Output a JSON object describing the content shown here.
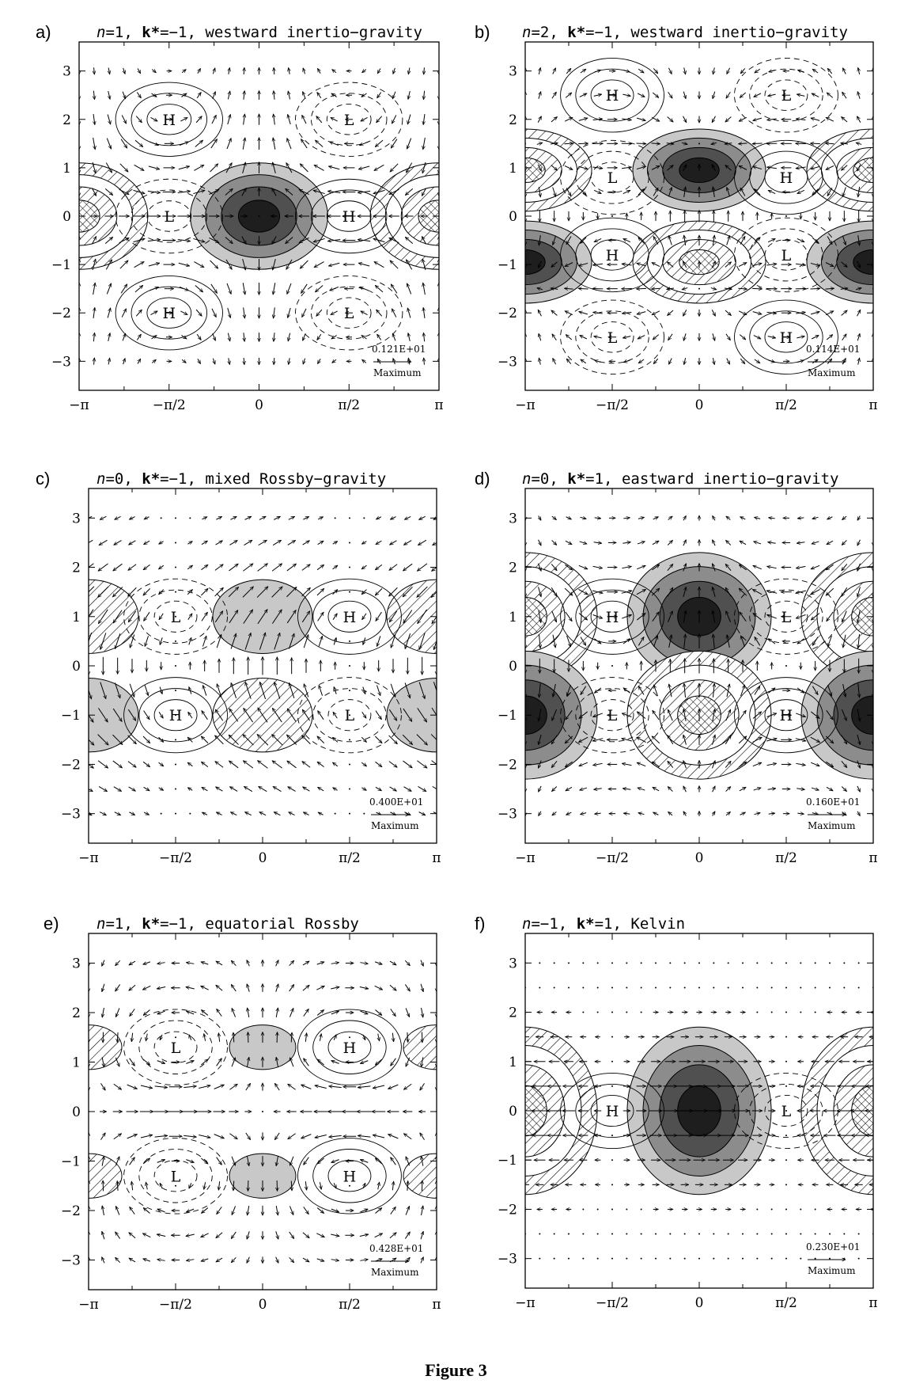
{
  "figure": {
    "caption": "Figure 3"
  },
  "axes": {
    "x_ticks": [
      "−π",
      "−π/2",
      "0",
      "π/2",
      "π"
    ],
    "y_ticks": [
      "3",
      "2",
      "1",
      "0",
      "−1",
      "−2",
      "−3"
    ],
    "max_label": "Maximum"
  },
  "colors": {
    "shade_light": "#c8c8c8",
    "shade_mid": "#8c8c8c",
    "shade_dark": "#505050",
    "shade_darkest": "#1e1e1e"
  },
  "panels": [
    {
      "letter": "a)",
      "n": "1",
      "k": "−1",
      "desc": "westward inertio−gravity",
      "max_value": "0.121E+01",
      "labels": [
        {
          "t": "H",
          "x": -1.57,
          "y": 2
        },
        {
          "t": "L",
          "x": 1.57,
          "y": 2
        },
        {
          "t": "L",
          "x": -1.57,
          "y": 0
        },
        {
          "t": "H",
          "x": 1.57,
          "y": 0
        },
        {
          "t": "H",
          "x": -1.57,
          "y": -2
        },
        {
          "t": "L",
          "x": 1.57,
          "y": -2
        }
      ]
    },
    {
      "letter": "b)",
      "n": "2",
      "k": "−1",
      "desc": "westward inertio−gravity",
      "max_value": "0.114E+01",
      "labels": [
        {
          "t": "H",
          "x": -1.57,
          "y": 2.5
        },
        {
          "t": "L",
          "x": 1.57,
          "y": 2.5
        },
        {
          "t": "L",
          "x": -1.57,
          "y": 0.8
        },
        {
          "t": "H",
          "x": 1.57,
          "y": 0.8
        },
        {
          "t": "H",
          "x": -1.57,
          "y": -0.8
        },
        {
          "t": "L",
          "x": 1.57,
          "y": -0.8
        },
        {
          "t": "L",
          "x": -1.57,
          "y": -2.5
        },
        {
          "t": "H",
          "x": 1.57,
          "y": -2.5
        }
      ]
    },
    {
      "letter": "c)",
      "n": "0",
      "k": "−1",
      "desc": "mixed Rossby−gravity",
      "max_value": "0.400E+01",
      "labels": [
        {
          "t": "L",
          "x": -1.57,
          "y": 1
        },
        {
          "t": "H",
          "x": 1.57,
          "y": 1
        },
        {
          "t": "H",
          "x": -1.57,
          "y": -1
        },
        {
          "t": "L",
          "x": 1.57,
          "y": -1
        }
      ]
    },
    {
      "letter": "d)",
      "n": "0",
      "k": "1",
      "desc": "eastward inertio−gravity",
      "max_value": "0.160E+01",
      "labels": [
        {
          "t": "H",
          "x": -1.57,
          "y": 1
        },
        {
          "t": "L",
          "x": 1.57,
          "y": 1
        },
        {
          "t": "L",
          "x": -1.57,
          "y": -1
        },
        {
          "t": "H",
          "x": 1.57,
          "y": -1
        }
      ]
    },
    {
      "letter": "e)",
      "n": "1",
      "k": "−1",
      "desc": "equatorial Rossby",
      "max_value": "0.428E+01",
      "labels": [
        {
          "t": "L",
          "x": -1.57,
          "y": 1.3
        },
        {
          "t": "H",
          "x": 1.57,
          "y": 1.3
        },
        {
          "t": "L",
          "x": -1.57,
          "y": -1.3
        },
        {
          "t": "H",
          "x": 1.57,
          "y": -1.3
        }
      ]
    },
    {
      "letter": "f)",
      "n": "−1",
      "k": "1",
      "desc": "Kelvin",
      "max_value": "0.230E+01",
      "labels": [
        {
          "t": "H",
          "x": -1.57,
          "y": 0
        },
        {
          "t": "L",
          "x": 1.57,
          "y": 0
        }
      ]
    }
  ]
}
